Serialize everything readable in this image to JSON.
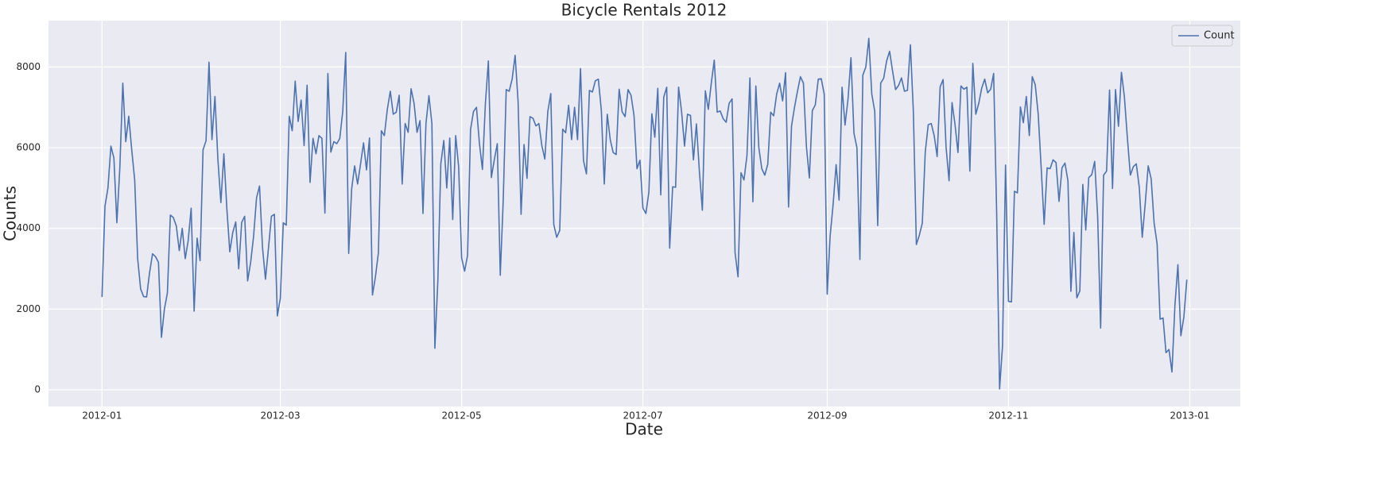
{
  "chart_data": {
    "type": "line",
    "title": "Bicycle Rentals 2012",
    "xlabel": "Date",
    "ylabel": "Counts",
    "legend": "upper right",
    "grid": true,
    "xlim": [
      "2011-12-14",
      "2013-01-18"
    ],
    "ylim": [
      -413,
      9149
    ],
    "xticks": [
      {
        "value": "2012-01-01",
        "label": "2012-01"
      },
      {
        "value": "2012-03-01",
        "label": "2012-03"
      },
      {
        "value": "2012-05-01",
        "label": "2012-05"
      },
      {
        "value": "2012-07-01",
        "label": "2012-07"
      },
      {
        "value": "2012-09-01",
        "label": "2012-09"
      },
      {
        "value": "2012-11-01",
        "label": "2012-11"
      },
      {
        "value": "2013-01-01",
        "label": "2013-01"
      }
    ],
    "yticks": [
      0,
      2000,
      4000,
      6000,
      8000
    ],
    "x": [
      "2012-01-01",
      "2012-01-02",
      "2012-01-03",
      "2012-01-04",
      "2012-01-05",
      "2012-01-06",
      "2012-01-07",
      "2012-01-08",
      "2012-01-09",
      "2012-01-10",
      "2012-01-11",
      "2012-01-12",
      "2012-01-13",
      "2012-01-14",
      "2012-01-15",
      "2012-01-16",
      "2012-01-17",
      "2012-01-18",
      "2012-01-19",
      "2012-01-20",
      "2012-01-21",
      "2012-01-22",
      "2012-01-23",
      "2012-01-24",
      "2012-01-25",
      "2012-01-26",
      "2012-01-27",
      "2012-01-28",
      "2012-01-29",
      "2012-01-30",
      "2012-01-31",
      "2012-02-01",
      "2012-02-02",
      "2012-02-03",
      "2012-02-04",
      "2012-02-05",
      "2012-02-06",
      "2012-02-07",
      "2012-02-08",
      "2012-02-09",
      "2012-02-10",
      "2012-02-11",
      "2012-02-12",
      "2012-02-13",
      "2012-02-14",
      "2012-02-15",
      "2012-02-16",
      "2012-02-17",
      "2012-02-18",
      "2012-02-19",
      "2012-02-20",
      "2012-02-21",
      "2012-02-22",
      "2012-02-23",
      "2012-02-24",
      "2012-02-25",
      "2012-02-26",
      "2012-02-27",
      "2012-02-28",
      "2012-02-29",
      "2012-03-01",
      "2012-03-02",
      "2012-03-03",
      "2012-03-04",
      "2012-03-05",
      "2012-03-06",
      "2012-03-07",
      "2012-03-08",
      "2012-03-09",
      "2012-03-10",
      "2012-03-11",
      "2012-03-12",
      "2012-03-13",
      "2012-03-14",
      "2012-03-15",
      "2012-03-16",
      "2012-03-17",
      "2012-03-18",
      "2012-03-19",
      "2012-03-20",
      "2012-03-21",
      "2012-03-22",
      "2012-03-23",
      "2012-03-24",
      "2012-03-25",
      "2012-03-26",
      "2012-03-27",
      "2012-03-28",
      "2012-03-29",
      "2012-03-30",
      "2012-03-31",
      "2012-04-01",
      "2012-04-02",
      "2012-04-03",
      "2012-04-04",
      "2012-04-05",
      "2012-04-06",
      "2012-04-07",
      "2012-04-08",
      "2012-04-09",
      "2012-04-10",
      "2012-04-11",
      "2012-04-12",
      "2012-04-13",
      "2012-04-14",
      "2012-04-15",
      "2012-04-16",
      "2012-04-17",
      "2012-04-18",
      "2012-04-19",
      "2012-04-20",
      "2012-04-21",
      "2012-04-22",
      "2012-04-23",
      "2012-04-24",
      "2012-04-25",
      "2012-04-26",
      "2012-04-27",
      "2012-04-28",
      "2012-04-29",
      "2012-04-30",
      "2012-05-01",
      "2012-05-02",
      "2012-05-03",
      "2012-05-04",
      "2012-05-05",
      "2012-05-06",
      "2012-05-07",
      "2012-05-08",
      "2012-05-09",
      "2012-05-10",
      "2012-05-11",
      "2012-05-12",
      "2012-05-13",
      "2012-05-14",
      "2012-05-15",
      "2012-05-16",
      "2012-05-17",
      "2012-05-18",
      "2012-05-19",
      "2012-05-20",
      "2012-05-21",
      "2012-05-22",
      "2012-05-23",
      "2012-05-24",
      "2012-05-25",
      "2012-05-26",
      "2012-05-27",
      "2012-05-28",
      "2012-05-29",
      "2012-05-30",
      "2012-05-31",
      "2012-06-01",
      "2012-06-02",
      "2012-06-03",
      "2012-06-04",
      "2012-06-05",
      "2012-06-06",
      "2012-06-07",
      "2012-06-08",
      "2012-06-09",
      "2012-06-10",
      "2012-06-11",
      "2012-06-12",
      "2012-06-13",
      "2012-06-14",
      "2012-06-15",
      "2012-06-16",
      "2012-06-17",
      "2012-06-18",
      "2012-06-19",
      "2012-06-20",
      "2012-06-21",
      "2012-06-22",
      "2012-06-23",
      "2012-06-24",
      "2012-06-25",
      "2012-06-26",
      "2012-06-27",
      "2012-06-28",
      "2012-06-29",
      "2012-06-30",
      "2012-07-01",
      "2012-07-02",
      "2012-07-03",
      "2012-07-04",
      "2012-07-05",
      "2012-07-06",
      "2012-07-07",
      "2012-07-08",
      "2012-07-09",
      "2012-07-10",
      "2012-07-11",
      "2012-07-12",
      "2012-07-13",
      "2012-07-14",
      "2012-07-15",
      "2012-07-16",
      "2012-07-17",
      "2012-07-18",
      "2012-07-19",
      "2012-07-20",
      "2012-07-21",
      "2012-07-22",
      "2012-07-23",
      "2012-07-24",
      "2012-07-25",
      "2012-07-26",
      "2012-07-27",
      "2012-07-28",
      "2012-07-29",
      "2012-07-30",
      "2012-07-31",
      "2012-08-01",
      "2012-08-02",
      "2012-08-03",
      "2012-08-04",
      "2012-08-05",
      "2012-08-06",
      "2012-08-07",
      "2012-08-08",
      "2012-08-09",
      "2012-08-10",
      "2012-08-11",
      "2012-08-12",
      "2012-08-13",
      "2012-08-14",
      "2012-08-15",
      "2012-08-16",
      "2012-08-17",
      "2012-08-18",
      "2012-08-19",
      "2012-08-20",
      "2012-08-21",
      "2012-08-22",
      "2012-08-23",
      "2012-08-24",
      "2012-08-25",
      "2012-08-26",
      "2012-08-27",
      "2012-08-28",
      "2012-08-29",
      "2012-08-30",
      "2012-08-31",
      "2012-09-01",
      "2012-09-02",
      "2012-09-03",
      "2012-09-04",
      "2012-09-05",
      "2012-09-06",
      "2012-09-07",
      "2012-09-08",
      "2012-09-09",
      "2012-09-10",
      "2012-09-11",
      "2012-09-12",
      "2012-09-13",
      "2012-09-14",
      "2012-09-15",
      "2012-09-16",
      "2012-09-17",
      "2012-09-18",
      "2012-09-19",
      "2012-09-20",
      "2012-09-21",
      "2012-09-22",
      "2012-09-23",
      "2012-09-24",
      "2012-09-25",
      "2012-09-26",
      "2012-09-27",
      "2012-09-28",
      "2012-09-29",
      "2012-09-30",
      "2012-10-01",
      "2012-10-02",
      "2012-10-03",
      "2012-10-04",
      "2012-10-05",
      "2012-10-06",
      "2012-10-07",
      "2012-10-08",
      "2012-10-09",
      "2012-10-10",
      "2012-10-11",
      "2012-10-12",
      "2012-10-13",
      "2012-10-14",
      "2012-10-15",
      "2012-10-16",
      "2012-10-17",
      "2012-10-18",
      "2012-10-19",
      "2012-10-20",
      "2012-10-21",
      "2012-10-22",
      "2012-10-23",
      "2012-10-24",
      "2012-10-25",
      "2012-10-26",
      "2012-10-27",
      "2012-10-28",
      "2012-10-29",
      "2012-10-30",
      "2012-10-31",
      "2012-11-01",
      "2012-11-02",
      "2012-11-03",
      "2012-11-04",
      "2012-11-05",
      "2012-11-06",
      "2012-11-07",
      "2012-11-08",
      "2012-11-09",
      "2012-11-10",
      "2012-11-11",
      "2012-11-12",
      "2012-11-13",
      "2012-11-14",
      "2012-11-15",
      "2012-11-16",
      "2012-11-17",
      "2012-11-18",
      "2012-11-19",
      "2012-11-20",
      "2012-11-21",
      "2012-11-22",
      "2012-11-23",
      "2012-11-24",
      "2012-11-25",
      "2012-11-26",
      "2012-11-27",
      "2012-11-28",
      "2012-11-29",
      "2012-11-30",
      "2012-12-01",
      "2012-12-02",
      "2012-12-03",
      "2012-12-04",
      "2012-12-05",
      "2012-12-06",
      "2012-12-07",
      "2012-12-08",
      "2012-12-09",
      "2012-12-10",
      "2012-12-11",
      "2012-12-12",
      "2012-12-13",
      "2012-12-14",
      "2012-12-15",
      "2012-12-16",
      "2012-12-17",
      "2012-12-18",
      "2012-12-19",
      "2012-12-20",
      "2012-12-21",
      "2012-12-22",
      "2012-12-23",
      "2012-12-24",
      "2012-12-25",
      "2012-12-26",
      "2012-12-27",
      "2012-12-28",
      "2012-12-29",
      "2012-12-30",
      "2012-12-31"
    ],
    "series": [
      {
        "name": "Count",
        "color": "#4c72b0",
        "values": [
          2300,
          4550,
          5000,
          6040,
          5750,
          4140,
          5500,
          7600,
          6150,
          6780,
          5950,
          5200,
          3250,
          2500,
          2310,
          2300,
          2900,
          3370,
          3300,
          3160,
          1300,
          2000,
          2400,
          4330,
          4270,
          4060,
          3450,
          4000,
          3250,
          3700,
          4500,
          1950,
          3760,
          3200,
          5950,
          6170,
          8120,
          6200,
          7270,
          5700,
          4640,
          5850,
          4500,
          3420,
          3900,
          4160,
          3000,
          4150,
          4300,
          2700,
          3150,
          3800,
          4760,
          5050,
          3530,
          2740,
          3500,
          4300,
          4350,
          1830,
          2270,
          4140,
          4080,
          6780,
          6420,
          7650,
          6650,
          7180,
          6050,
          7550,
          5140,
          6230,
          5850,
          6300,
          6230,
          4380,
          7840,
          5890,
          6150,
          6100,
          6230,
          6900,
          8360,
          3380,
          4980,
          5550,
          5100,
          5600,
          6120,
          5450,
          6240,
          2350,
          2800,
          3400,
          6420,
          6300,
          6950,
          7400,
          6830,
          6880,
          7300,
          5100,
          6600,
          6380,
          7460,
          7100,
          6380,
          6670,
          4370,
          6600,
          7290,
          6600,
          1030,
          2700,
          5600,
          6180,
          5000,
          6240,
          4220,
          6300,
          5520,
          3270,
          2940,
          3330,
          6450,
          6900,
          7000,
          6100,
          5460,
          7100,
          8150,
          5260,
          5700,
          6100,
          2840,
          4700,
          7440,
          7400,
          7700,
          8290,
          7140,
          4350,
          6080,
          5240,
          6770,
          6730,
          6540,
          6600,
          6050,
          5720,
          6900,
          7340,
          4100,
          3780,
          3950,
          6460,
          6370,
          7050,
          6200,
          7000,
          6200,
          7960,
          5680,
          5350,
          7420,
          7380,
          7660,
          7700,
          6930,
          5100,
          6830,
          6200,
          5880,
          5830,
          7450,
          6890,
          6770,
          7440,
          7300,
          6800,
          5480,
          5690,
          4500,
          4370,
          4900,
          6840,
          6260,
          7470,
          4830,
          7250,
          7500,
          3510,
          5030,
          5020,
          7500,
          6900,
          6040,
          6830,
          6800,
          5700,
          6590,
          5410,
          4450,
          7410,
          6950,
          7600,
          8170,
          6880,
          6910,
          6720,
          6630,
          7100,
          7210,
          3400,
          2800,
          5380,
          5200,
          5800,
          7730,
          4660,
          7530,
          6000,
          5480,
          5320,
          5590,
          6880,
          6790,
          7330,
          7600,
          7160,
          7860,
          4530,
          6540,
          7000,
          7400,
          7760,
          7600,
          6040,
          5250,
          6920,
          7060,
          7700,
          7710,
          7330,
          2370,
          3820,
          4600,
          5580,
          4700,
          7500,
          6560,
          7200,
          8230,
          6360,
          6000,
          3230,
          7800,
          8000,
          8710,
          7330,
          6900,
          4070,
          7600,
          7720,
          8150,
          8390,
          7900,
          7440,
          7540,
          7730,
          7400,
          7420,
          8550,
          6880,
          3600,
          3830,
          4130,
          5900,
          6570,
          6600,
          6300,
          5780,
          7510,
          7690,
          6010,
          5180,
          7120,
          6580,
          5880,
          7530,
          7450,
          7500,
          5420,
          8090,
          6830,
          7100,
          7480,
          7700,
          7360,
          7450,
          7840,
          4450,
          22,
          1100,
          5570,
          2190,
          2180,
          4920,
          4880,
          7010,
          6620,
          7270,
          6300,
          7760,
          7560,
          6830,
          5500,
          4100,
          5500,
          5480,
          5700,
          5630,
          4670,
          5500,
          5620,
          5180,
          2440,
          3900,
          2280,
          2450,
          5090,
          3960,
          5260,
          5330,
          5660,
          4290,
          1530,
          5320,
          5420,
          7430,
          4990,
          7440,
          6530,
          7870,
          7260,
          6240,
          5320,
          5530,
          5600,
          5020,
          3780,
          4610,
          5550,
          5230,
          4130,
          3620,
          1750,
          1780,
          920,
          1000,
          440,
          2100,
          3100,
          1340,
          1800,
          2730
        ]
      }
    ]
  }
}
